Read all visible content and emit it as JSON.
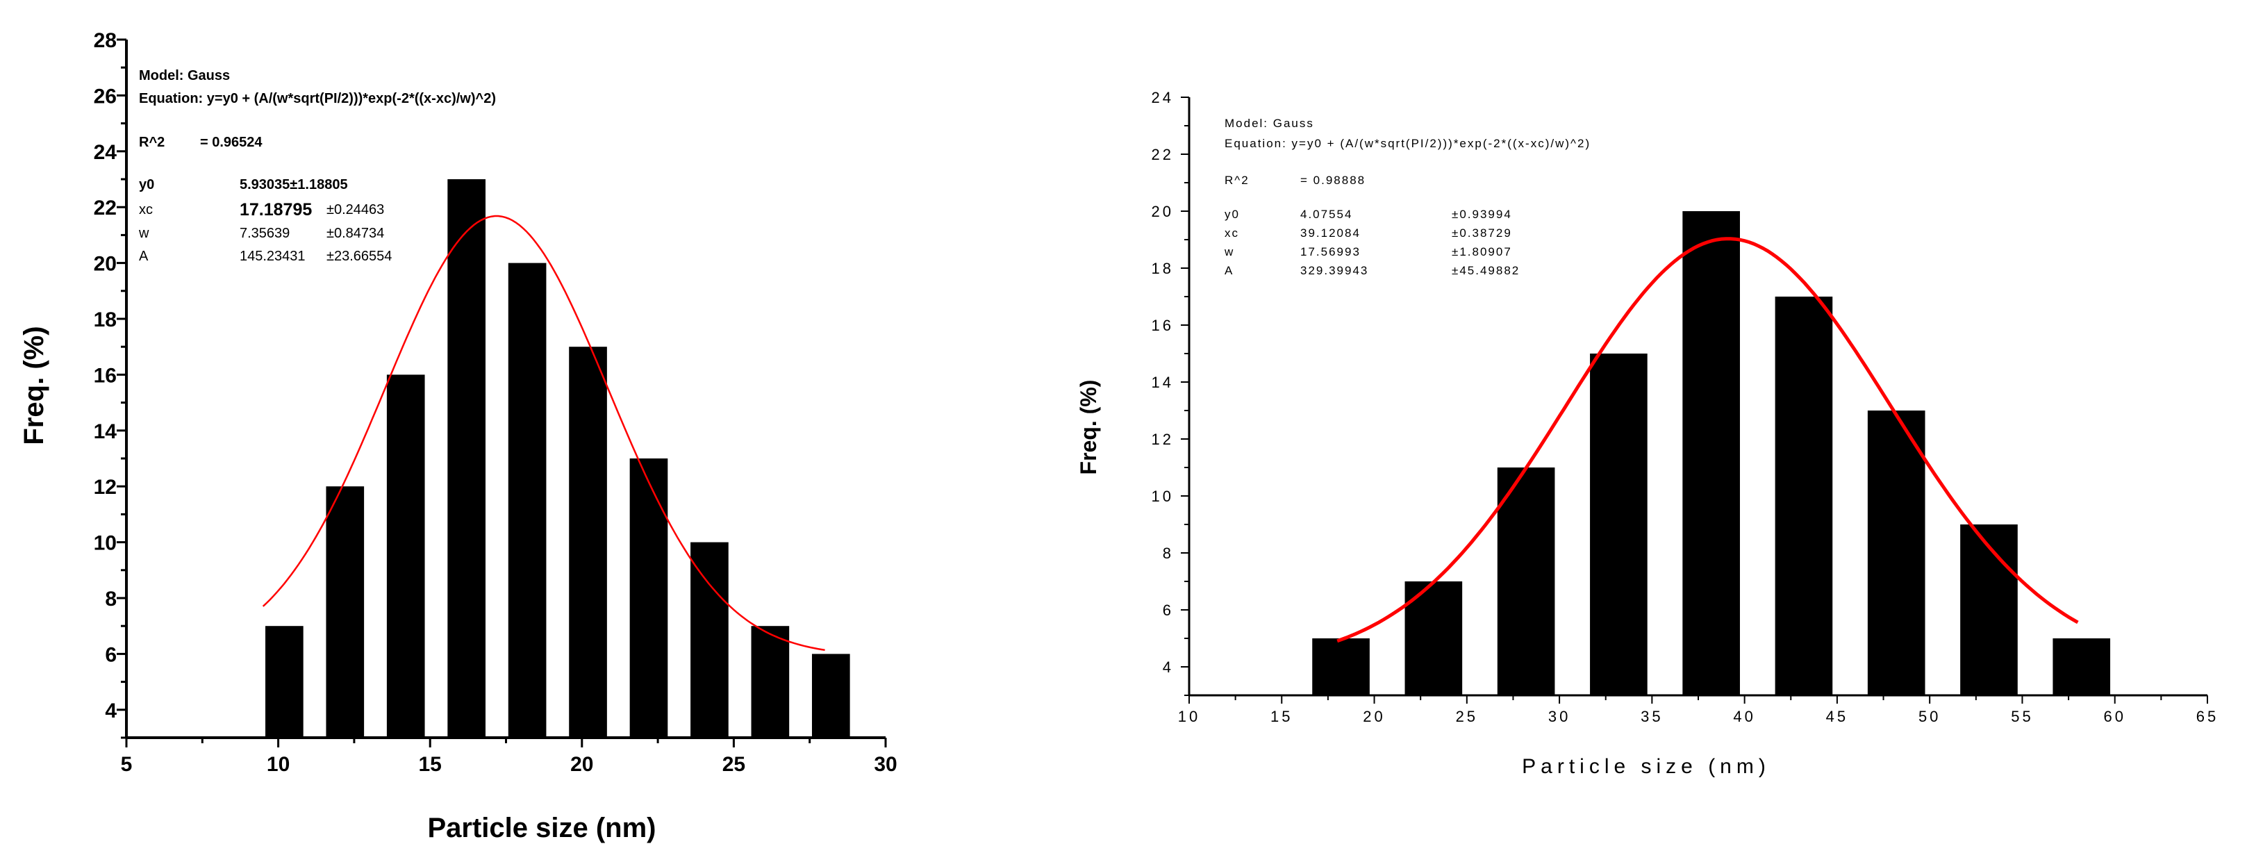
{
  "chart_data": [
    {
      "type": "bar",
      "xlabel": "Particle size (nm)",
      "ylabel": "Freq. (%)",
      "xlim": [
        5,
        30
      ],
      "ylim": [
        3,
        28
      ],
      "x_ticks": [
        "5",
        "10",
        "15",
        "20",
        "25",
        "30"
      ],
      "y_ticks": [
        "4",
        "6",
        "8",
        "10",
        "12",
        "14",
        "16",
        "18",
        "20",
        "22",
        "24",
        "26",
        "28"
      ],
      "bar_color": "#000000",
      "bar_width": 1.25,
      "bars": [
        {
          "x": 10.2,
          "value": 7
        },
        {
          "x": 12.2,
          "value": 12
        },
        {
          "x": 14.2,
          "value": 16
        },
        {
          "x": 16.2,
          "value": 23
        },
        {
          "x": 18.2,
          "value": 20
        },
        {
          "x": 20.2,
          "value": 17
        },
        {
          "x": 22.2,
          "value": 13
        },
        {
          "x": 24.2,
          "value": 10
        },
        {
          "x": 26.2,
          "value": 7
        },
        {
          "x": 28.2,
          "value": 6
        }
      ],
      "fit": {
        "color": "#ff0000",
        "x_range": [
          9.5,
          28.0
        ],
        "y0": 5.93035,
        "xc": 17.18795,
        "w": 7.35639,
        "A": 145.23431
      },
      "annotation": {
        "model": "Model: Gauss",
        "equation": "Equation: y=y0 + (A/(w*sqrt(PI/2)))*exp(-2*((x-xc)/w)^2)",
        "r2_label": "R^2",
        "r2_value": "= 0.96524",
        "params": [
          {
            "name": "y0",
            "value": "5.93035",
            "error": "±1.18805"
          },
          {
            "name": "xc",
            "value": "17.18795",
            "error": "±0.24463"
          },
          {
            "name": "w",
            "value": "7.35639",
            "error": "±0.84734"
          },
          {
            "name": "A",
            "value": "145.23431",
            "error": "±23.66554"
          }
        ]
      }
    },
    {
      "type": "bar",
      "xlabel": "Particle size (nm)",
      "ylabel": "Freq. (%)",
      "xlim": [
        10,
        65
      ],
      "ylim": [
        3,
        24
      ],
      "x_ticks": [
        "10",
        "15",
        "20",
        "25",
        "30",
        "35",
        "40",
        "45",
        "50",
        "55",
        "60",
        "65"
      ],
      "y_ticks": [
        "4",
        "6",
        "8",
        "10",
        "12",
        "14",
        "16",
        "18",
        "20",
        "22",
        "24"
      ],
      "bar_color": "#000000",
      "bar_width": 3.1,
      "bars": [
        {
          "x": 18.2,
          "value": 5
        },
        {
          "x": 23.2,
          "value": 7
        },
        {
          "x": 28.2,
          "value": 11
        },
        {
          "x": 33.2,
          "value": 15
        },
        {
          "x": 38.2,
          "value": 20
        },
        {
          "x": 43.2,
          "value": 17
        },
        {
          "x": 48.2,
          "value": 13
        },
        {
          "x": 53.2,
          "value": 9
        },
        {
          "x": 58.2,
          "value": 5
        }
      ],
      "fit": {
        "color": "#ff0000",
        "x_range": [
          18.0,
          58.0
        ],
        "y0": 4.07554,
        "xc": 39.12084,
        "w": 17.56993,
        "A": 329.39943
      },
      "annotation": {
        "model": "Model: Gauss",
        "equation": "Equation: y=y0 + (A/(w*sqrt(PI/2)))*exp(-2*((x-xc)/w)^2)",
        "r2_label": "R^2",
        "r2_value": "= 0.98888",
        "params": [
          {
            "name": "y0",
            "value": "4.07554",
            "error": "±0.93994"
          },
          {
            "name": "xc",
            "value": "39.12084",
            "error": "±0.38729"
          },
          {
            "name": "w",
            "value": "17.56993",
            "error": "±1.80907"
          },
          {
            "name": "A",
            "value": "329.39943",
            "error": "±45.49882"
          }
        ]
      }
    }
  ]
}
